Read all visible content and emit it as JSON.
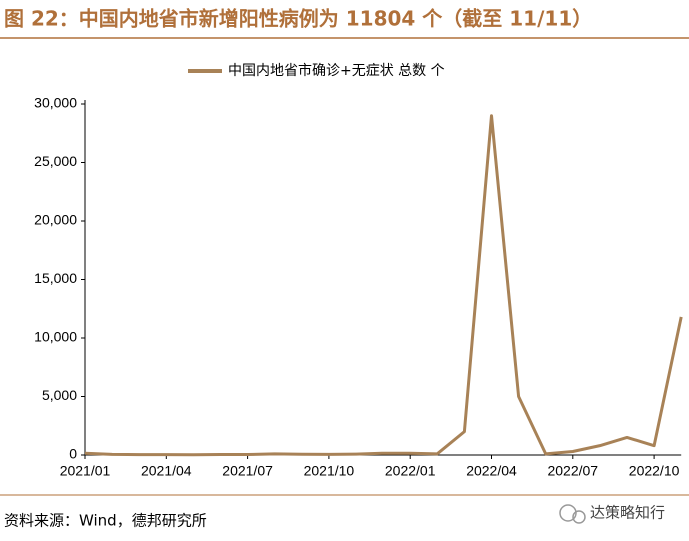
{
  "chart_data": {
    "type": "line",
    "title": "图 22：中国内地省市新增阳性病例为 11804 个（截至 11/11）",
    "categories": [
      "2021/01",
      null,
      null,
      "2021/04",
      null,
      null,
      "2021/07",
      null,
      null,
      "2021/10",
      null,
      null,
      "2022/01",
      null,
      null,
      "2022/04",
      null,
      null,
      "2022/07",
      null,
      null,
      "2022/10",
      null
    ],
    "series": [
      {
        "name": "中国内地省市确诊+无症状 总数 个",
        "color": "#a88257",
        "values": [
          150,
          50,
          30,
          30,
          20,
          40,
          40,
          100,
          60,
          50,
          80,
          150,
          150,
          100,
          2000,
          29000,
          5000,
          100,
          300,
          800,
          1500,
          800,
          11804
        ]
      }
    ],
    "ylim": [
      0,
      30000
    ],
    "yticks": [
      0,
      {
        "value": 5000,
        "label": "5,000"
      },
      {
        "value": 10000,
        "label": "10,000"
      },
      {
        "value": 15000,
        "label": "15,000"
      },
      {
        "value": 20000,
        "label": "20,000"
      },
      {
        "value": 25000,
        "label": "25,000"
      },
      {
        "value": 30000,
        "label": "30,000"
      }
    ],
    "grid": false,
    "legend": "top",
    "source": "资料来源：Wind，德邦研究所",
    "watermark": "达策略知行"
  }
}
